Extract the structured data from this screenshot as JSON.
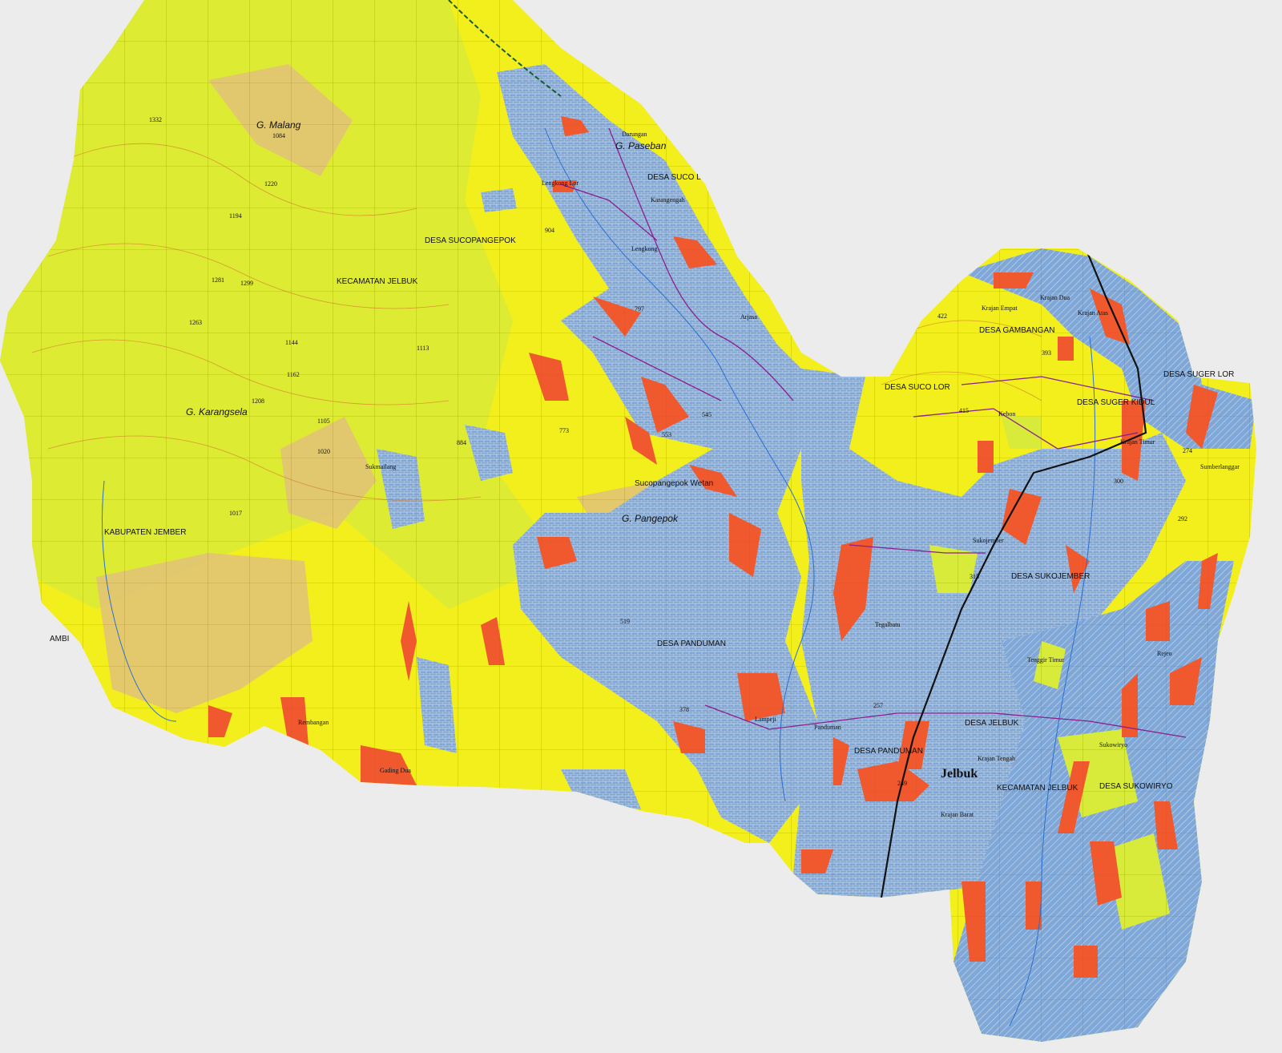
{
  "map": {
    "colors": {
      "background": "#ececec",
      "forest_yellow": "#f2ef1c",
      "upland_green": "#d8ea3a",
      "hill_tan": "#e2c27a",
      "settlement_blue": "#7fa8d8",
      "plantation_red": "#f0582e",
      "road": "#8a1f8f",
      "river": "#2a6fd0",
      "contour": "#d27a2a",
      "grid": "#2e9a3a",
      "main_road": "#111111"
    },
    "labels": {
      "g_malang": "G. Malang",
      "g_paseban": "G. Paseban",
      "desa_suco_lor_n": "DESA SUCO L",
      "desa_sucopangepok": "DESA SUCOPANGEPOK",
      "kecamatan_jelbuk_n": "KECAMATAN JELBUK",
      "g_karangsela": "G. Karangsela",
      "kabupaten_jember": "KABUPATEN JEMBER",
      "ambi": "AMBI",
      "sucopangepok_wetan": "Sucopangepok Wetan",
      "g_pangepok": "G. Pangepok",
      "desa_panduman_w": "DESA PANDUMAN",
      "desa_gambangan": "DESA GAMBANGAN",
      "desa_suco_lor": "DESA SUCO LOR",
      "desa_suger_kidul": "DESA SUGER KIDUL",
      "desa_suger_lor": "DESA SUGER LOR",
      "krajan_timur": "Krajan Timur",
      "krajan_atas": "Krajan Atas",
      "krajan_dua": "Krajan Dua",
      "krajan_empat": "Krajan Empat",
      "kebon": "Kebon",
      "desa_sukojember": "DESA SUKOJEMBER",
      "sukojember": "Sukojember",
      "desa_jelbuk": "DESA JELBUK",
      "desa_panduman": "DESA PANDUMAN",
      "panduman": "Panduman",
      "jelbuk": "Jelbuk",
      "kecamatan_jelbuk_s": "KECAMATAN JELBUK",
      "desa_sukowiryo": "DESA SUKOWIRYO",
      "sukowiryo": "Sukowiryo",
      "krajan_barat": "Krajan Barat",
      "krajan_tengah": "Krajan Tengah",
      "darungan": "Darungan",
      "lengkong_lor": "Lengkong Lor",
      "lengkong": "Lengkong",
      "karangengah": "Karangengah",
      "arjasa": "Arjasa",
      "sukmailang": "Sukmailang",
      "sumberlanggar": "Sumberlanggar",
      "lampeji": "Lampeji",
      "gading_dua": "Gading Dua",
      "rembangan": "Rembangan",
      "tegalbatu": "Tegalbatu",
      "tenggir_timur": "Tenggir Timur",
      "rejeo": "Rejeo"
    },
    "spot_heights": [
      "1084",
      "1332",
      "1220",
      "1194",
      "1281",
      "1299",
      "1263",
      "1144",
      "1113",
      "1162",
      "1208",
      "1105",
      "1020",
      "1017",
      "884",
      "904",
      "797",
      "773",
      "553",
      "545",
      "519",
      "378",
      "422",
      "393",
      "415",
      "300",
      "315",
      "274",
      "249",
      "257",
      "292"
    ]
  }
}
